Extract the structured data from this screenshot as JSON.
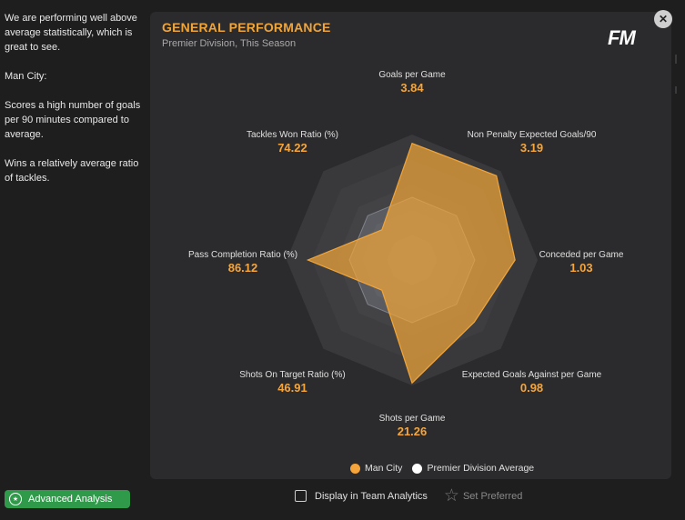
{
  "sidebar": {
    "paragraphs": [
      "We are performing well above average statistically, which is great to see.",
      "Man City:",
      "Scores a high number of goals per 90 minutes compared to average.",
      "Wins a relatively average ratio of tackles."
    ],
    "advanced_button": "Advanced Analysis"
  },
  "panel": {
    "title": "GENERAL PERFORMANCE",
    "subtitle": "Premier Division, This Season",
    "logo": "FM"
  },
  "metrics": [
    {
      "label": "Goals per Game",
      "value": "3.84"
    },
    {
      "label": "Non Penalty Expected Goals/90",
      "value": "3.19"
    },
    {
      "label": "Conceded per Game",
      "value": "1.03"
    },
    {
      "label": "Expected Goals Against per Game",
      "value": "0.98"
    },
    {
      "label": "Shots per Game",
      "value": "21.26"
    },
    {
      "label": "Shots On Target Ratio (%)",
      "value": "46.91"
    },
    {
      "label": "Pass Completion Ratio (%)",
      "value": "86.12"
    },
    {
      "label": "Tackles Won Ratio (%)",
      "value": "74.22"
    }
  ],
  "chart_data": {
    "type": "radar",
    "categories": [
      "Goals per Game",
      "Non Penalty Expected Goals/90",
      "Conceded per Game",
      "Expected Goals Against per Game",
      "Shots per Game",
      "Shots On Target Ratio (%)",
      "Pass Completion Ratio (%)",
      "Tackles Won Ratio (%)"
    ],
    "series": [
      {
        "name": "Man City",
        "values": [
          0.93,
          0.95,
          0.82,
          0.7,
          0.98,
          0.34,
          0.83,
          0.34
        ],
        "color": "#f0a53a"
      },
      {
        "name": "Premier Division Average",
        "values": [
          0.5,
          0.5,
          0.5,
          0.5,
          0.5,
          0.5,
          0.5,
          0.5
        ],
        "color": "#ffffff"
      }
    ],
    "range": [
      0,
      1
    ],
    "rings": 5
  },
  "legend": {
    "items": [
      {
        "label": "Man City",
        "color": "#f5a53b"
      },
      {
        "label": "Premier Division Average",
        "color": "#ffffff"
      }
    ]
  },
  "footer": {
    "display_label": "Display in Team Analytics",
    "set_preferred": "Set Preferred"
  },
  "close_icon": "close-icon",
  "star_icon": "star-icon"
}
